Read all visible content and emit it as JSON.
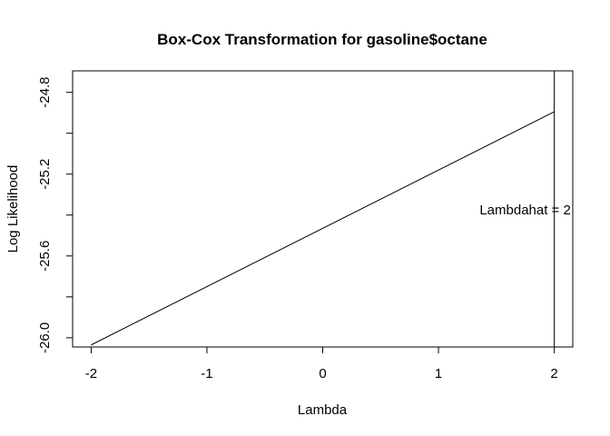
{
  "chart_data": {
    "type": "line",
    "title": "Box-Cox Transformation for gasoline$octane",
    "xlabel": "Lambda",
    "ylabel": "Log Likelihood",
    "x_ticks": [
      "-2",
      "-1",
      "0",
      "1",
      "2"
    ],
    "y_ticks": [
      "-26.0",
      "-25.6",
      "-25.2",
      "-24.8"
    ],
    "xlim": [
      -2.16,
      2.16
    ],
    "ylim": [
      -26.045,
      -24.695
    ],
    "series": [
      {
        "x": [
          -2,
          2
        ],
        "y": [
          -26.035,
          -24.895
        ]
      }
    ],
    "vline_x": 2,
    "annotation": "Lambdahat = 2",
    "annotation_y": -25.375,
    "grid": false,
    "legend": "none"
  }
}
